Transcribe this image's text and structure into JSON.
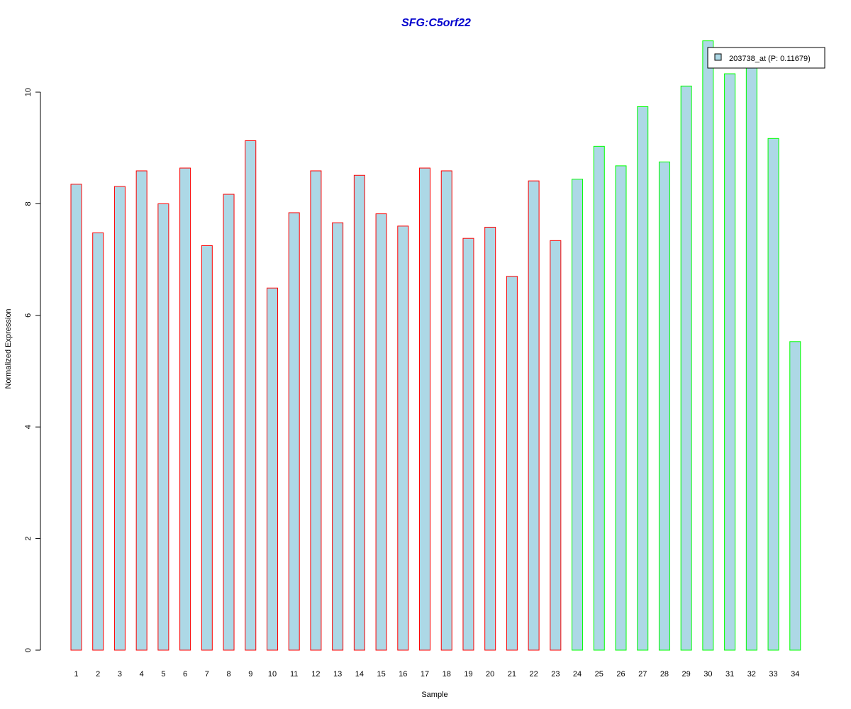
{
  "chart_data": {
    "type": "bar",
    "title": "SFG:C5orf22",
    "xlabel": "Sample",
    "ylabel": "Normalized Expression",
    "categories": [
      "1",
      "2",
      "3",
      "4",
      "5",
      "6",
      "7",
      "8",
      "9",
      "10",
      "11",
      "12",
      "13",
      "14",
      "15",
      "16",
      "17",
      "18",
      "19",
      "20",
      "21",
      "22",
      "23",
      "24",
      "25",
      "26",
      "27",
      "28",
      "29",
      "30",
      "31",
      "32",
      "33",
      "34"
    ],
    "series": [
      {
        "name": "203738_at (P: 0.11679)",
        "values": [
          8.35,
          7.48,
          8.31,
          8.59,
          8.0,
          8.64,
          7.25,
          8.17,
          9.13,
          6.49,
          7.84,
          8.59,
          7.66,
          8.51,
          7.82,
          7.6,
          8.64,
          8.59,
          7.38,
          7.58,
          6.7,
          8.41,
          7.34,
          8.44,
          9.03,
          8.68,
          9.74,
          8.75,
          10.11,
          10.92,
          10.33,
          10.6,
          9.17,
          5.53
        ]
      }
    ],
    "yticks": [
      "0",
      "2",
      "4",
      "6",
      "8",
      "10"
    ],
    "ylim": [
      0,
      10.92
    ],
    "grid": false,
    "legend_position": "top-right",
    "group_sizes": [
      23,
      11
    ]
  },
  "colors": {
    "bar_fill": "#add8e6",
    "group1_border": "#ff0000",
    "group2_border": "#00ff00",
    "title": "#0000cd",
    "axis": "#000000"
  }
}
